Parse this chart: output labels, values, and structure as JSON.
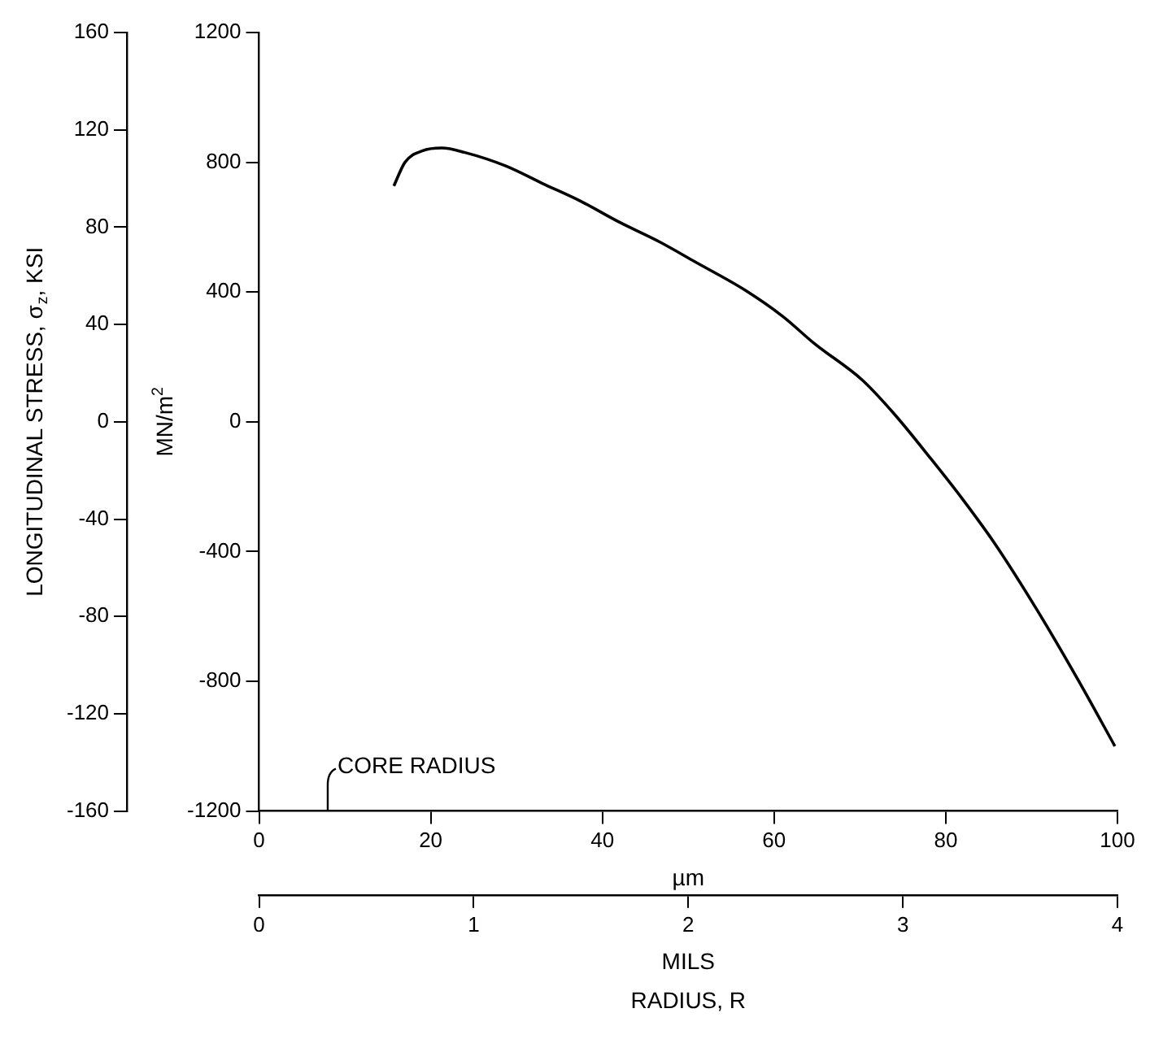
{
  "chart_data": {
    "type": "line",
    "xlabel": "µm",
    "x2label": "MILS",
    "ylabel": "MN/m$^{2}$",
    "y2label": "LONGITUDINAL STRESS, σ$_{z}$, KSI",
    "x": [
      15.7,
      17,
      19,
      21.3,
      24,
      28.8,
      33,
      37.4,
      42,
      46.7,
      51,
      56.6,
      61,
      64.7,
      70.3,
      74,
      78.3,
      82,
      85.7,
      90.7,
      95.7,
      99.7
    ],
    "series": [
      {
        "color": "#000000",
        "values": [
          727,
          800,
          835,
          844,
          830,
          788,
          735,
          681,
          615,
          554,
          490,
          406,
          325,
          241,
          128,
          24,
          -115,
          -240,
          -375,
          -583,
          -809,
          -1000
        ]
      }
    ],
    "xlim": [
      0,
      100
    ],
    "xticks": [
      0,
      20,
      40,
      60,
      80,
      100
    ],
    "x2lim": [
      0,
      4
    ],
    "x2ticks": [
      0,
      1,
      2,
      3,
      4
    ],
    "ylim": [
      -1200,
      1200
    ],
    "yticks": [
      -1200,
      -800,
      -400,
      0,
      400,
      800,
      1200
    ],
    "y2lim": [
      -160,
      160
    ],
    "y2ticks": [
      -160,
      -120,
      -80,
      -40,
      0,
      40,
      80,
      120,
      160
    ],
    "grid": false,
    "legend": false,
    "marker": "none",
    "line_style": "solid",
    "annotations": [
      "CORE RADIUS",
      "RADIUS, R"
    ]
  }
}
